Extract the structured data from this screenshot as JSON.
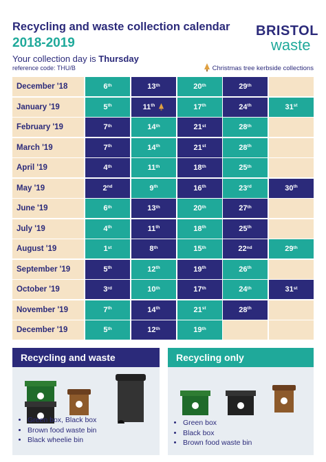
{
  "header": {
    "title": "Recycling and waste collection calendar",
    "years": "2018-2019",
    "collection_prefix": "Your collection day is",
    "collection_day": "Thursday",
    "reference": "reference code: THU/B",
    "logo_top": "BRISTOL",
    "logo_bottom": "waste",
    "tree_legend": "Christmas tree kerbside collections"
  },
  "calendar": {
    "rows": [
      {
        "month": "December '18",
        "days": [
          {
            "day": "6",
            "suffix": "th",
            "color": "#1fa99a"
          },
          {
            "day": "13",
            "suffix": "th",
            "color": "#2b2a7a"
          },
          {
            "day": "20",
            "suffix": "th",
            "color": "#1fa99a"
          },
          {
            "day": "29",
            "suffix": "th",
            "color": "#2b2a7a"
          }
        ]
      },
      {
        "month": "January '19",
        "days": [
          {
            "day": "5",
            "suffix": "th",
            "color": "#1fa99a"
          },
          {
            "day": "11",
            "suffix": "th",
            "color": "#2b2a7a",
            "tree": true
          },
          {
            "day": "17",
            "suffix": "th",
            "color": "#1fa99a"
          },
          {
            "day": "24",
            "suffix": "th",
            "color": "#2b2a7a"
          },
          {
            "day": "31",
            "suffix": "st",
            "color": "#1fa99a"
          }
        ]
      },
      {
        "month": "February '19",
        "days": [
          {
            "day": "7",
            "suffix": "th",
            "color": "#2b2a7a"
          },
          {
            "day": "14",
            "suffix": "th",
            "color": "#1fa99a"
          },
          {
            "day": "21",
            "suffix": "st",
            "color": "#2b2a7a"
          },
          {
            "day": "28",
            "suffix": "th",
            "color": "#1fa99a"
          }
        ]
      },
      {
        "month": "March '19",
        "days": [
          {
            "day": "7",
            "suffix": "th",
            "color": "#2b2a7a"
          },
          {
            "day": "14",
            "suffix": "th",
            "color": "#1fa99a"
          },
          {
            "day": "21",
            "suffix": "st",
            "color": "#2b2a7a"
          },
          {
            "day": "28",
            "suffix": "th",
            "color": "#1fa99a"
          }
        ]
      },
      {
        "month": "April '19",
        "days": [
          {
            "day": "4",
            "suffix": "th",
            "color": "#2b2a7a"
          },
          {
            "day": "11",
            "suffix": "th",
            "color": "#1fa99a"
          },
          {
            "day": "18",
            "suffix": "th",
            "color": "#2b2a7a"
          },
          {
            "day": "25",
            "suffix": "th",
            "color": "#1fa99a"
          }
        ]
      },
      {
        "month": "May '19",
        "days": [
          {
            "day": "2",
            "suffix": "nd",
            "color": "#2b2a7a"
          },
          {
            "day": "9",
            "suffix": "th",
            "color": "#1fa99a"
          },
          {
            "day": "16",
            "suffix": "th",
            "color": "#2b2a7a"
          },
          {
            "day": "23",
            "suffix": "rd",
            "color": "#1fa99a"
          },
          {
            "day": "30",
            "suffix": "th",
            "color": "#2b2a7a"
          }
        ]
      },
      {
        "month": "June '19",
        "days": [
          {
            "day": "6",
            "suffix": "th",
            "color": "#1fa99a"
          },
          {
            "day": "13",
            "suffix": "th",
            "color": "#2b2a7a"
          },
          {
            "day": "20",
            "suffix": "th",
            "color": "#1fa99a"
          },
          {
            "day": "27",
            "suffix": "th",
            "color": "#2b2a7a"
          }
        ]
      },
      {
        "month": "July '19",
        "days": [
          {
            "day": "4",
            "suffix": "th",
            "color": "#1fa99a"
          },
          {
            "day": "11",
            "suffix": "th",
            "color": "#2b2a7a"
          },
          {
            "day": "18",
            "suffix": "th",
            "color": "#1fa99a"
          },
          {
            "day": "25",
            "suffix": "th",
            "color": "#2b2a7a"
          }
        ]
      },
      {
        "month": "August '19",
        "days": [
          {
            "day": "1",
            "suffix": "st",
            "color": "#1fa99a"
          },
          {
            "day": "8",
            "suffix": "th",
            "color": "#2b2a7a"
          },
          {
            "day": "15",
            "suffix": "th",
            "color": "#1fa99a"
          },
          {
            "day": "22",
            "suffix": "nd",
            "color": "#2b2a7a"
          },
          {
            "day": "29",
            "suffix": "th",
            "color": "#1fa99a"
          }
        ]
      },
      {
        "month": "September '19",
        "days": [
          {
            "day": "5",
            "suffix": "th",
            "color": "#2b2a7a"
          },
          {
            "day": "12",
            "suffix": "th",
            "color": "#1fa99a"
          },
          {
            "day": "19",
            "suffix": "th",
            "color": "#2b2a7a"
          },
          {
            "day": "26",
            "suffix": "th",
            "color": "#1fa99a"
          }
        ]
      },
      {
        "month": "October '19",
        "days": [
          {
            "day": "3",
            "suffix": "rd",
            "color": "#2b2a7a"
          },
          {
            "day": "10",
            "suffix": "th",
            "color": "#1fa99a"
          },
          {
            "day": "17",
            "suffix": "th",
            "color": "#2b2a7a"
          },
          {
            "day": "24",
            "suffix": "th",
            "color": "#1fa99a"
          },
          {
            "day": "31",
            "suffix": "st",
            "color": "#2b2a7a"
          }
        ]
      },
      {
        "month": "November '19",
        "days": [
          {
            "day": "7",
            "suffix": "th",
            "color": "#1fa99a"
          },
          {
            "day": "14",
            "suffix": "th",
            "color": "#2b2a7a"
          },
          {
            "day": "21",
            "suffix": "st",
            "color": "#1fa99a"
          },
          {
            "day": "28",
            "suffix": "th",
            "color": "#2b2a7a"
          }
        ]
      },
      {
        "month": "December '19",
        "days": [
          {
            "day": "5",
            "suffix": "th",
            "color": "#1fa99a"
          },
          {
            "day": "12",
            "suffix": "th",
            "color": "#2b2a7a"
          },
          {
            "day": "19",
            "suffix": "th",
            "color": "#1fa99a"
          }
        ]
      }
    ]
  },
  "panels": [
    {
      "title": "Recycling and waste",
      "color": "#2b2a7a",
      "items": [
        "Green box, Black box",
        "Brown food waste bin",
        "Black wheelie bin"
      ]
    },
    {
      "title": "Recycling only",
      "color": "#1fa99a",
      "items": [
        "Green box",
        "Black box",
        "Brown food waste bin"
      ]
    }
  ]
}
